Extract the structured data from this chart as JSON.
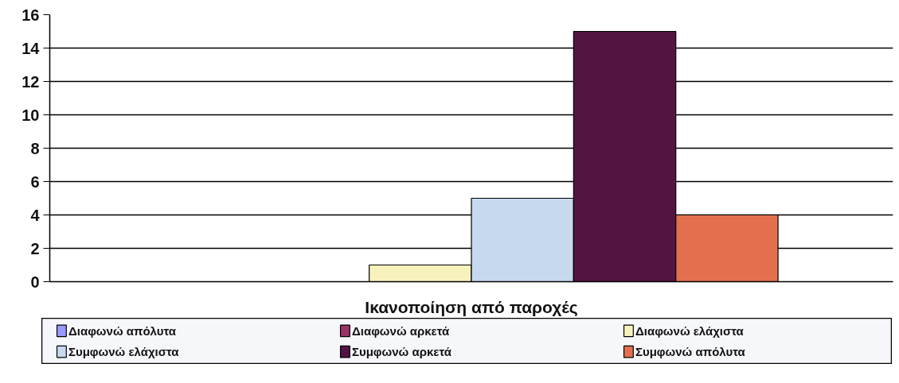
{
  "chart_data": {
    "type": "bar",
    "xlabel": "Ικανοποίηση από παροχές",
    "categories": [
      null
    ],
    "series": [
      {
        "name": "Διαφωνώ απόλυτα",
        "color": "#9999ff",
        "values": [
          0
        ]
      },
      {
        "name": "Διαφωνώ αρκετά",
        "color": "#993366",
        "values": [
          0
        ]
      },
      {
        "name": "Διαφωνώ ελάχιστα",
        "color": "#f7f2bc",
        "values": [
          1
        ]
      },
      {
        "name": "Συμφωνώ ελάχιστα",
        "color": "#c6d9ef",
        "values": [
          5
        ]
      },
      {
        "name": "Συμφωνώ αρκετά",
        "color": "#541442",
        "values": [
          15
        ]
      },
      {
        "name": "Συμφωνώ απόλυτα",
        "color": "#e2704f",
        "values": [
          4
        ]
      }
    ],
    "ylim": [
      0,
      16
    ],
    "yticks": [
      0,
      2,
      4,
      6,
      8,
      10,
      12,
      14,
      16
    ],
    "grid": "y",
    "legend": "bottom"
  }
}
